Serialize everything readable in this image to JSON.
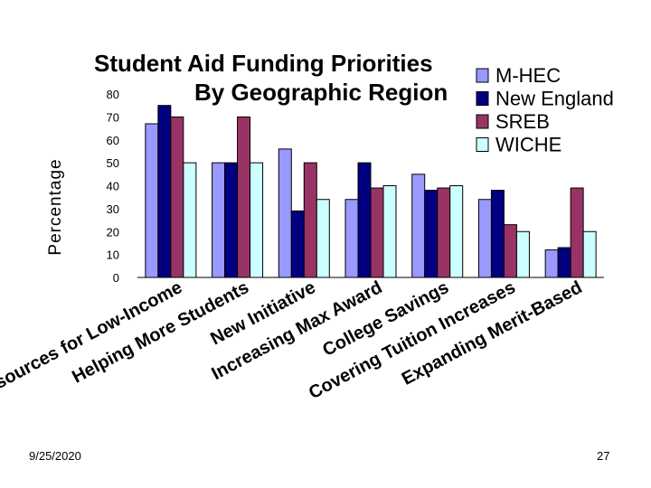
{
  "slide": {
    "date": "9/25/2020",
    "page_number": "27"
  },
  "chart_data": {
    "type": "bar",
    "title": "Student Aid Funding Priorities",
    "subtitle": "By Geographic Region",
    "ylabel": "Percentage",
    "xlabel": "",
    "ylim": [
      0,
      80
    ],
    "yticks": [
      0,
      10,
      20,
      30,
      40,
      50,
      60,
      70,
      80
    ],
    "grid": false,
    "legend_position": "top-right",
    "categories": [
      "Resources for Low-Income",
      "Helping More Students",
      "New Initiative",
      "Increasing Max Award",
      "College Savings",
      "Covering Tuition Increases",
      "Expanding Merit-Based"
    ],
    "series": [
      {
        "name": "M-HEC",
        "color": "#9999ff",
        "values": [
          67,
          50,
          56,
          34,
          45,
          34,
          12
        ]
      },
      {
        "name": "New England",
        "color": "#000080",
        "values": [
          75,
          50,
          29,
          50,
          38,
          38,
          13
        ]
      },
      {
        "name": "SREB",
        "color": "#993366",
        "values": [
          70,
          70,
          50,
          39,
          39,
          23,
          39
        ]
      },
      {
        "name": "WICHE",
        "color": "#ccffff",
        "values": [
          50,
          50,
          34,
          40,
          40,
          20,
          20
        ]
      }
    ]
  }
}
